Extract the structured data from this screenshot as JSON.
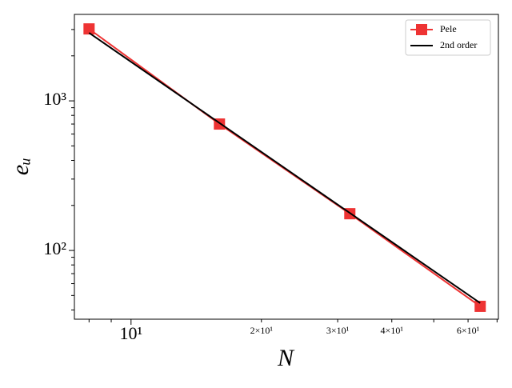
{
  "chart_data": {
    "type": "line",
    "x_label": "N",
    "y_label": "eᵤ",
    "x": [
      8,
      16,
      32,
      64
    ],
    "series": [
      {
        "name": "Pele",
        "color": "#ee3333",
        "marker": "square",
        "values": [
          3027,
          700,
          176,
          42.3
        ]
      },
      {
        "name": "2nd order",
        "color": "#000000",
        "values": [
          2850,
          712,
          178,
          44.5
        ]
      }
    ],
    "xlim": [
      7.4,
      70.5
    ],
    "ylim": [
      34.7,
      3785
    ],
    "x_log": true,
    "y_log": true,
    "xticks": [
      {
        "value": 10,
        "label": "10¹"
      }
    ],
    "xminor_labeled": [
      {
        "value": 20,
        "label": "2×10¹"
      },
      {
        "value": 30,
        "label": "3×10¹"
      },
      {
        "value": 40,
        "label": "4×10¹"
      },
      {
        "value": 60,
        "label": "6×10¹"
      }
    ],
    "xminor_ticks": [
      8,
      9,
      50,
      70
    ],
    "yticks": [
      {
        "value": 100,
        "label": "10²"
      },
      {
        "value": 1000,
        "label": "10³"
      }
    ],
    "yminor_ticks": [
      40,
      50,
      60,
      70,
      80,
      90,
      200,
      300,
      400,
      500,
      600,
      700,
      800,
      900,
      2000,
      3000
    ],
    "legend": "upper right",
    "grid": false
  }
}
